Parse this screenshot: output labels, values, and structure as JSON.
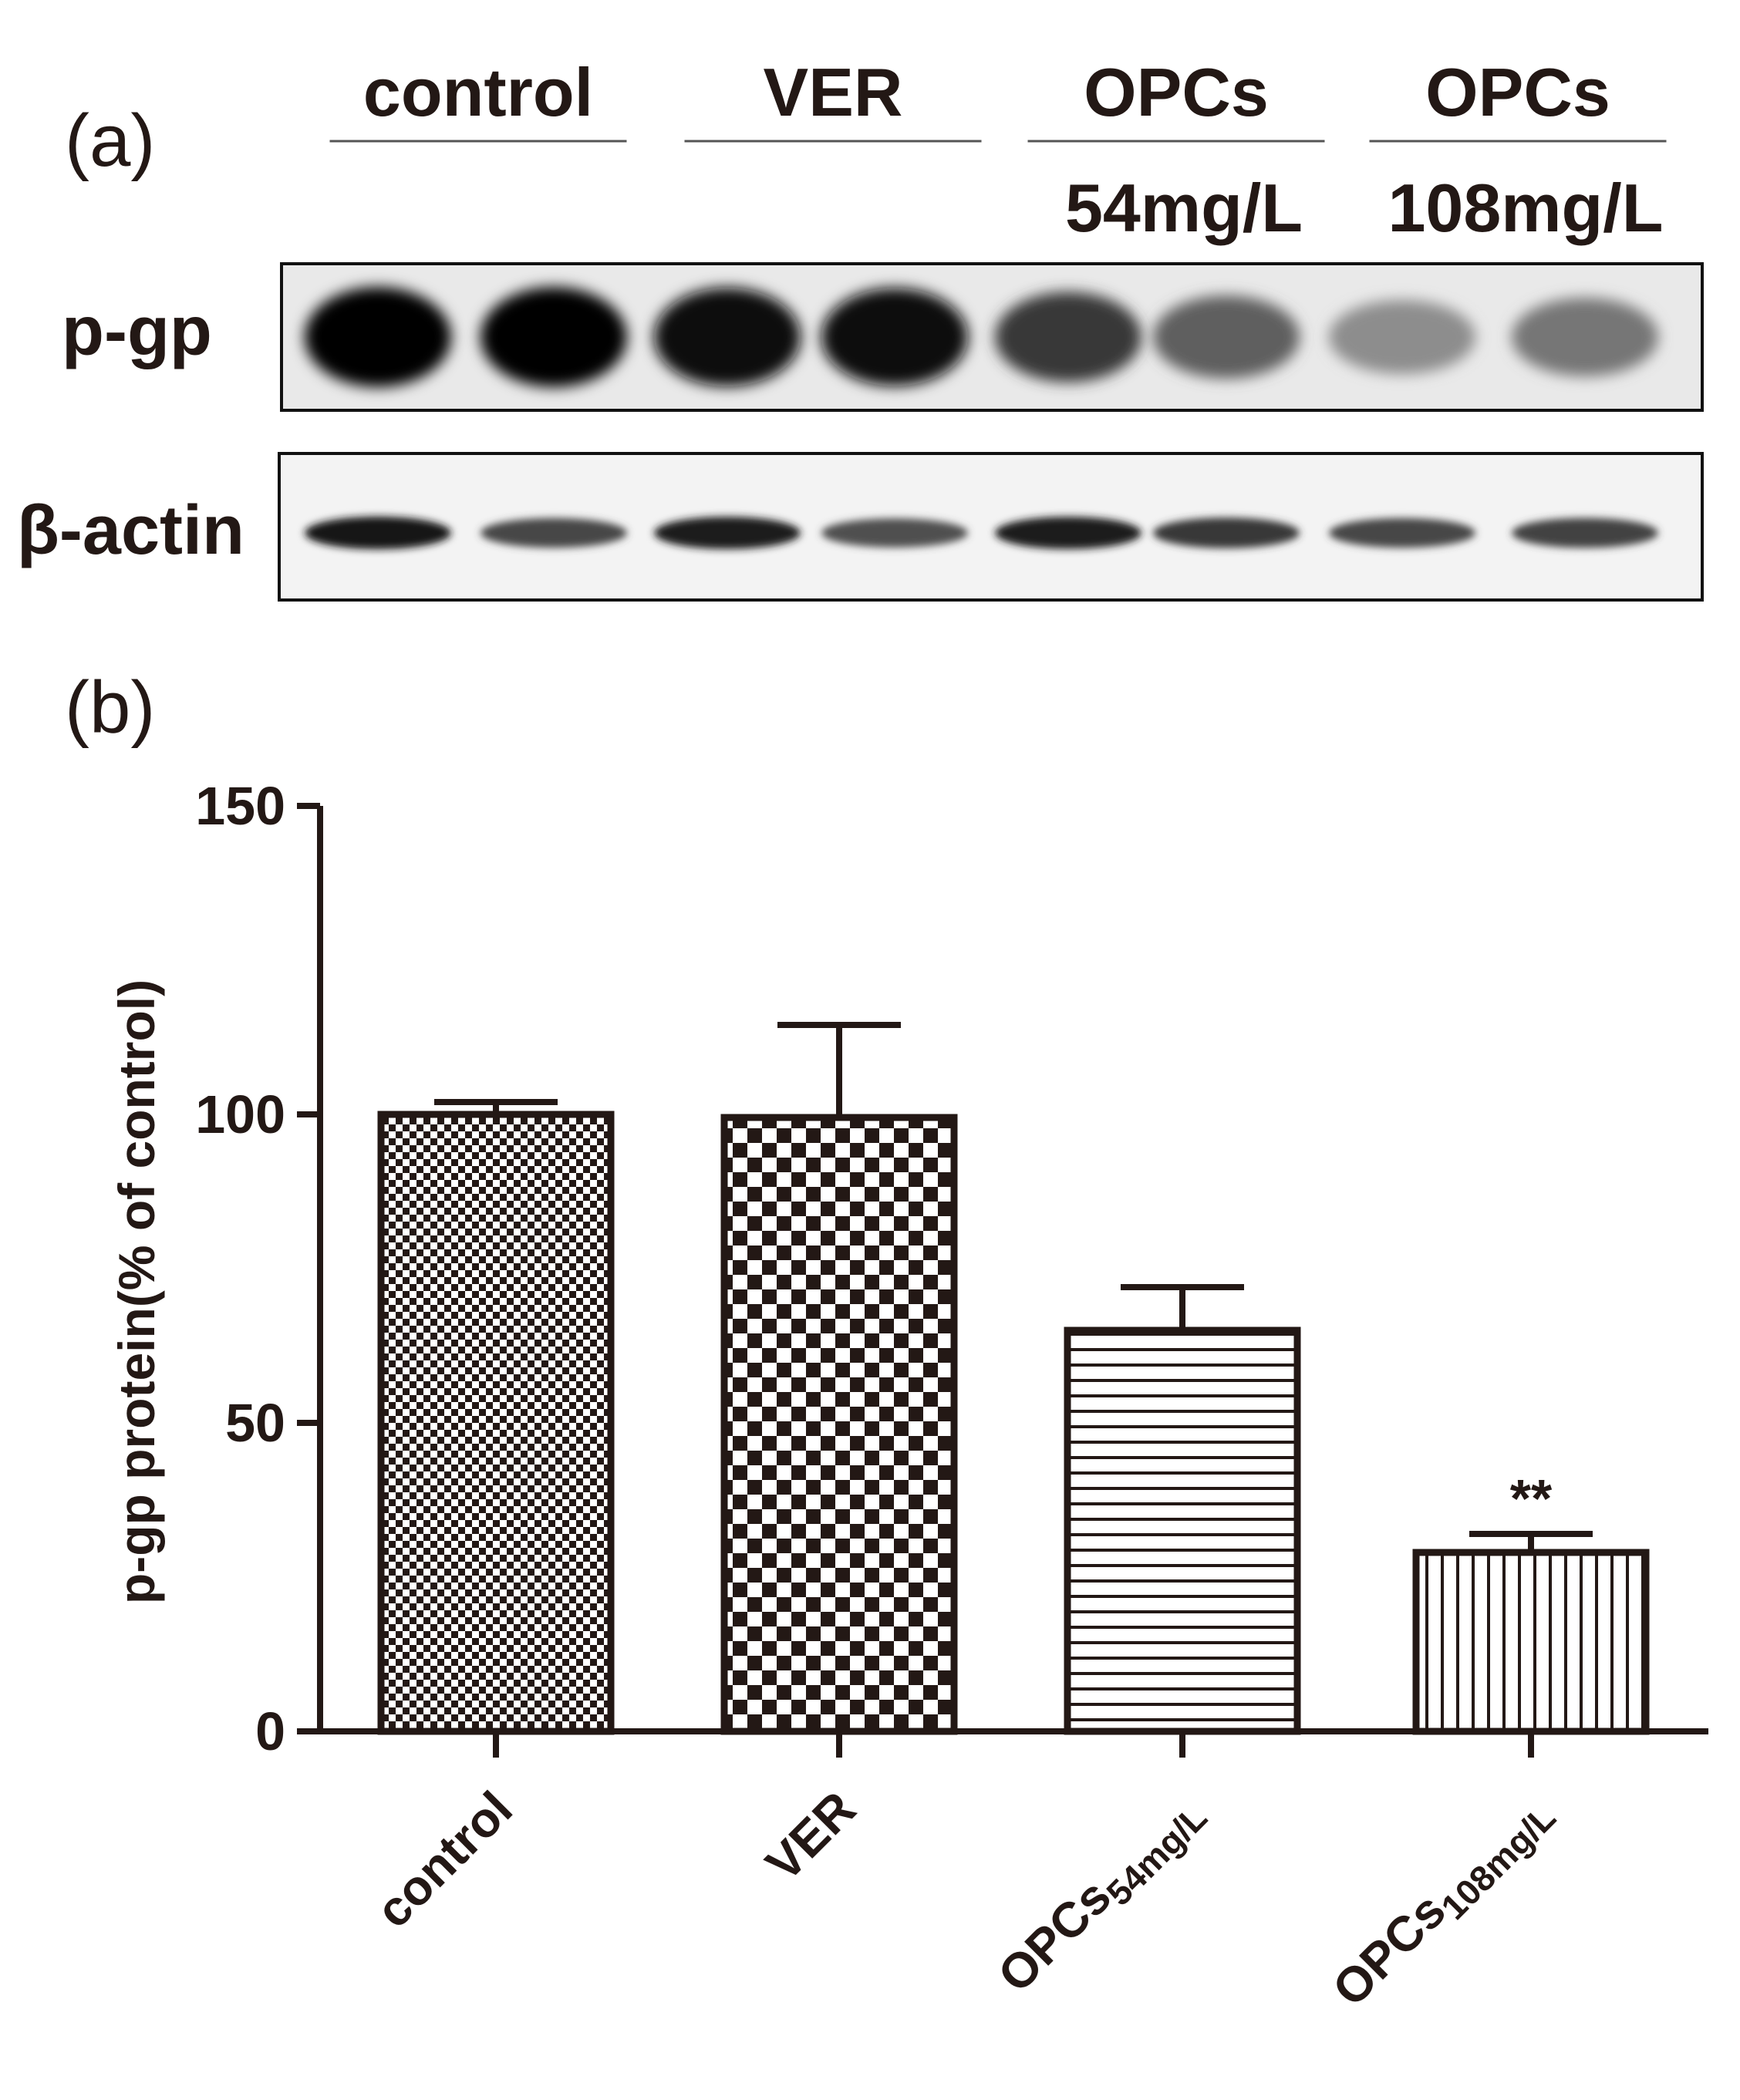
{
  "panel_a": {
    "label": "(a)",
    "groups": [
      {
        "name": "control",
        "sub": ""
      },
      {
        "name": "VER",
        "sub": ""
      },
      {
        "name": "OPCs",
        "sub": "54mg/L"
      },
      {
        "name": "OPCs",
        "sub": "108mg/L"
      }
    ],
    "blots": [
      {
        "name": "p-gp",
        "intensity": [
          1.0,
          1.0,
          0.97,
          0.95,
          0.78,
          0.62,
          0.42,
          0.52
        ]
      },
      {
        "name": "β-actin",
        "intensity": [
          0.92,
          0.72,
          0.9,
          0.68,
          0.9,
          0.78,
          0.72,
          0.74
        ]
      }
    ]
  },
  "panel_b": {
    "label": "(b)"
  },
  "chart_data": {
    "type": "bar",
    "categories": [
      "control",
      "VER",
      "OPCs54mg/L",
      "OPCs108mg/L"
    ],
    "category_labels": [
      {
        "main": "control",
        "sub": ""
      },
      {
        "main": "VER",
        "sub": ""
      },
      {
        "main": "OPCs",
        "sub": "54mg/L"
      },
      {
        "main": "OPCs",
        "sub": "108mg/L"
      }
    ],
    "values": [
      100,
      99.5,
      65,
      29
    ],
    "errors": [
      2,
      15,
      7,
      3
    ],
    "patterns": [
      "fine-checker",
      "coarse-checker",
      "horizontal-lines",
      "vertical-lines"
    ],
    "annotations": [
      "",
      "",
      "",
      "**"
    ],
    "title": "",
    "xlabel": "",
    "ylabel": "p-gp protein(% of control)",
    "ylim": [
      0,
      150
    ],
    "yticks": [
      0,
      50,
      100,
      150
    ],
    "grid": false,
    "legend": "none",
    "color": "#231815"
  }
}
